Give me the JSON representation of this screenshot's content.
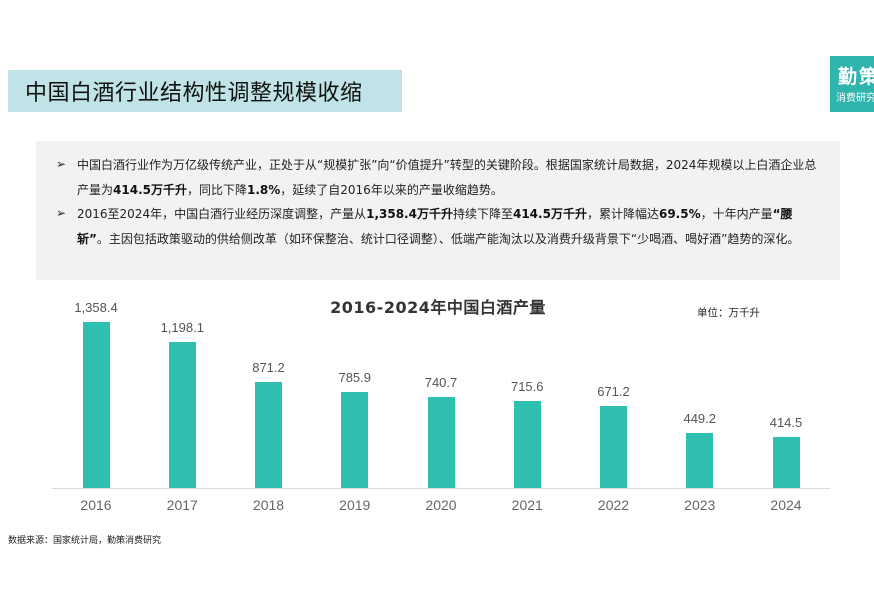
{
  "header": {
    "title": "中国白酒行业结构性调整规模收缩",
    "brand_name": "勤策",
    "brand_sub": "消费研究"
  },
  "summary": {
    "bullet_icon": "arrow-right-icon",
    "bullets": [
      {
        "parts": [
          {
            "text": "中国白酒行业作为万亿级传统产业，正处于从“规模扩张”向“价值提升”转型的关键阶段。根据国家统计局数据，2024年规模以上白酒企业总产量为",
            "bold": false
          },
          {
            "text": "414.5万千升",
            "bold": true
          },
          {
            "text": "，同比下降",
            "bold": false
          },
          {
            "text": "1.8%",
            "bold": true
          },
          {
            "text": "，延续了自2016年以来的产量收缩趋势。",
            "bold": false
          }
        ]
      },
      {
        "parts": [
          {
            "text": "2016至2024年，中国白酒行业经历深度调整，产量从",
            "bold": false
          },
          {
            "text": "1,358.4万千升",
            "bold": true
          },
          {
            "text": "持续下降至",
            "bold": false
          },
          {
            "text": "414.5万千升",
            "bold": true
          },
          {
            "text": "，累计降幅达",
            "bold": false
          },
          {
            "text": "69.5%",
            "bold": true
          },
          {
            "text": "，十年内产量",
            "bold": false
          },
          {
            "text": "“腰斩”",
            "bold": true
          },
          {
            "text": "。主因包括政策驱动的供给侧改革（如环保整治、统计口径调整）、低端产能淘汰以及消费升级背景下“少喝酒、喝好酒”趋势的深化。",
            "bold": false
          }
        ]
      }
    ]
  },
  "chart": {
    "title": "2016-2024年中国白酒产量",
    "unit": "单位：万千升",
    "bar_color": "#2fbfb1"
  },
  "chart_data": {
    "type": "bar",
    "title": "2016-2024年中国白酒产量",
    "xlabel": "",
    "ylabel": "",
    "unit": "单位：万千升",
    "categories": [
      "2016",
      "2017",
      "2018",
      "2019",
      "2020",
      "2021",
      "2022",
      "2023",
      "2024"
    ],
    "values": [
      1358.4,
      1198.1,
      871.2,
      785.9,
      740.7,
      715.6,
      671.2,
      449.2,
      414.5
    ],
    "value_labels": [
      "1,358.4",
      "1,198.1",
      "871.2",
      "785.9",
      "740.7",
      "715.6",
      "671.2",
      "449.2",
      "414.5"
    ],
    "ylim": [
      0,
      1400
    ],
    "grid": false,
    "legend": null,
    "series_color": "#2fbfb1"
  },
  "footer": {
    "source": "数据来源：国家统计局，勤策消费研究"
  }
}
